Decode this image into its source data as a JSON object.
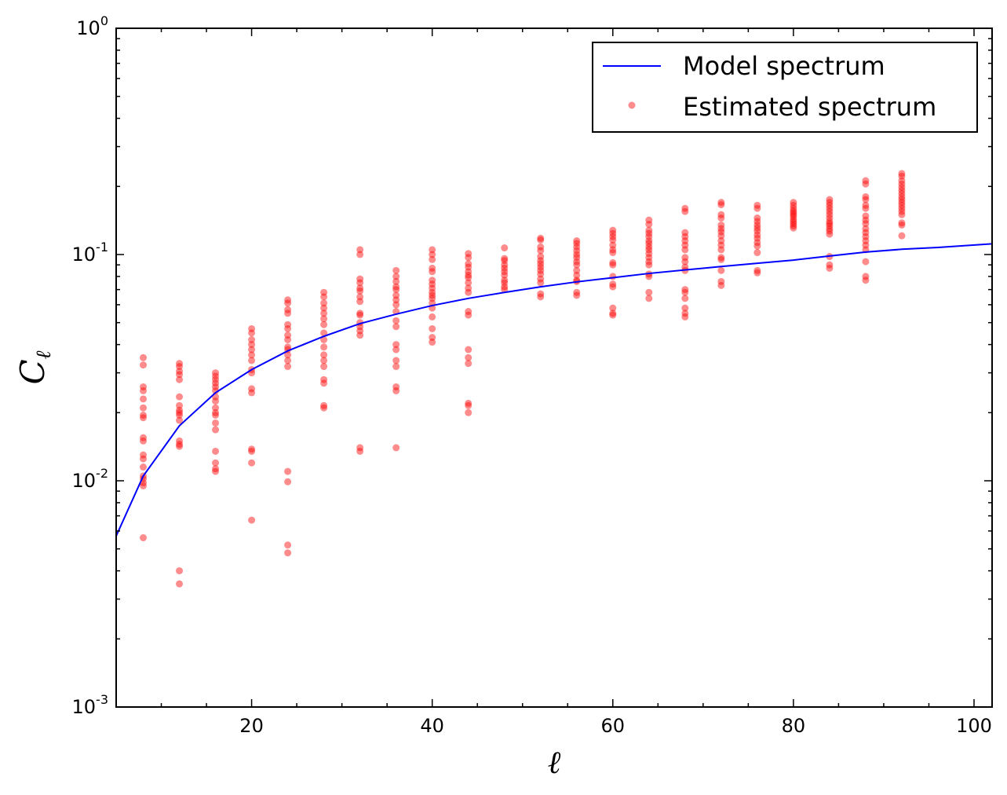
{
  "chart_data": {
    "type": "scatter",
    "title": "",
    "xlabel": "ℓ",
    "ylabel_main": "C",
    "ylabel_sub": "ℓ",
    "xlim": [
      5,
      102
    ],
    "ylim": [
      0.001,
      1
    ],
    "y_scale": "log",
    "grid": false,
    "legend_position": "top-right",
    "x_ticks": [
      {
        "value": 20,
        "label": "20"
      },
      {
        "value": 40,
        "label": "40"
      },
      {
        "value": 60,
        "label": "60"
      },
      {
        "value": 80,
        "label": "80"
      },
      {
        "value": 100,
        "label": "100"
      }
    ],
    "y_ticks": [
      {
        "value": 0.001,
        "base": "10",
        "exp": "-3"
      },
      {
        "value": 0.01,
        "base": "10",
        "exp": "-2"
      },
      {
        "value": 0.1,
        "base": "10",
        "exp": "-1"
      },
      {
        "value": 1,
        "base": "10",
        "exp": "0"
      }
    ],
    "model": {
      "name": "Model spectrum",
      "color": "#0000ff",
      "x": [
        5,
        8,
        12,
        16,
        20,
        24,
        28,
        32,
        36,
        40,
        44,
        48,
        52,
        56,
        60,
        64,
        68,
        72,
        76,
        80,
        84,
        88,
        92,
        96,
        102
      ],
      "y": [
        0.0057,
        0.0105,
        0.0175,
        0.0245,
        0.031,
        0.0375,
        0.0435,
        0.0495,
        0.0545,
        0.0595,
        0.064,
        0.068,
        0.072,
        0.0757,
        0.079,
        0.0825,
        0.0855,
        0.0885,
        0.0915,
        0.0945,
        0.0985,
        0.1025,
        0.1055,
        0.1075,
        0.1115
      ]
    },
    "estimated": {
      "name": "Estimated spectrum",
      "color": "#ff0000",
      "groups": [
        {
          "x": 8,
          "y": [
            0.035,
            0.0325,
            0.026,
            0.025,
            0.023,
            0.021,
            0.0195,
            0.019,
            0.0155,
            0.015,
            0.013,
            0.0125,
            0.0115,
            0.0105,
            0.0102,
            0.0098,
            0.0095,
            0.0056
          ]
        },
        {
          "x": 12,
          "y": [
            0.033,
            0.032,
            0.0305,
            0.0295,
            0.028,
            0.0235,
            0.0215,
            0.0205,
            0.02,
            0.0195,
            0.0185,
            0.015,
            0.0145,
            0.0142,
            0.004,
            0.0035
          ]
        },
        {
          "x": 16,
          "y": [
            0.03,
            0.029,
            0.028,
            0.027,
            0.026,
            0.025,
            0.0235,
            0.0225,
            0.021,
            0.02,
            0.0195,
            0.018,
            0.0168,
            0.0135,
            0.012,
            0.0113,
            0.011
          ]
        },
        {
          "x": 20,
          "y": [
            0.047,
            0.045,
            0.042,
            0.04,
            0.038,
            0.036,
            0.034,
            0.031,
            0.03,
            0.0255,
            0.0245,
            0.0138,
            0.0135,
            0.012,
            0.0067
          ]
        },
        {
          "x": 24,
          "y": [
            0.063,
            0.061,
            0.057,
            0.055,
            0.049,
            0.047,
            0.044,
            0.042,
            0.039,
            0.038,
            0.036,
            0.034,
            0.032,
            0.011,
            0.0099,
            0.0052,
            0.0048
          ]
        },
        {
          "x": 28,
          "y": [
            0.068,
            0.065,
            0.061,
            0.058,
            0.055,
            0.052,
            0.049,
            0.045,
            0.042,
            0.039,
            0.036,
            0.034,
            0.032,
            0.028,
            0.027,
            0.0215,
            0.021
          ]
        },
        {
          "x": 32,
          "y": [
            0.105,
            0.1,
            0.078,
            0.075,
            0.071,
            0.069,
            0.065,
            0.062,
            0.055,
            0.054,
            0.05,
            0.048,
            0.046,
            0.044,
            0.014,
            0.0135
          ]
        },
        {
          "x": 36,
          "y": [
            0.085,
            0.08,
            0.076,
            0.072,
            0.07,
            0.066,
            0.063,
            0.06,
            0.056,
            0.051,
            0.048,
            0.04,
            0.038,
            0.034,
            0.032,
            0.026,
            0.025,
            0.014
          ]
        },
        {
          "x": 40,
          "y": [
            0.105,
            0.1,
            0.095,
            0.087,
            0.084,
            0.077,
            0.074,
            0.071,
            0.068,
            0.066,
            0.064,
            0.061,
            0.058,
            0.053,
            0.047,
            0.043,
            0.041
          ]
        },
        {
          "x": 44,
          "y": [
            0.101,
            0.097,
            0.091,
            0.088,
            0.084,
            0.081,
            0.079,
            0.075,
            0.071,
            0.068,
            0.056,
            0.054,
            0.038,
            0.035,
            0.033,
            0.022,
            0.0215,
            0.02
          ]
        },
        {
          "x": 48,
          "y": [
            0.107,
            0.096,
            0.094,
            0.09,
            0.087,
            0.084,
            0.081,
            0.077,
            0.075,
            0.072,
            0.07
          ]
        },
        {
          "x": 52,
          "y": [
            0.118,
            0.116,
            0.108,
            0.104,
            0.098,
            0.094,
            0.091,
            0.088,
            0.085,
            0.082,
            0.078,
            0.075,
            0.067,
            0.065
          ]
        },
        {
          "x": 56,
          "y": [
            0.115,
            0.112,
            0.108,
            0.104,
            0.1,
            0.097,
            0.093,
            0.09,
            0.085,
            0.081,
            0.077,
            0.076,
            0.068,
            0.066
          ]
        },
        {
          "x": 60,
          "y": [
            0.128,
            0.124,
            0.12,
            0.116,
            0.11,
            0.105,
            0.102,
            0.092,
            0.09,
            0.08,
            0.074,
            0.072,
            0.058,
            0.055,
            0.054
          ]
        },
        {
          "x": 64,
          "y": [
            0.142,
            0.136,
            0.128,
            0.124,
            0.12,
            0.115,
            0.112,
            0.108,
            0.105,
            0.101,
            0.097,
            0.093,
            0.09,
            0.082,
            0.08,
            0.068,
            0.064
          ]
        },
        {
          "x": 68,
          "y": [
            0.16,
            0.155,
            0.125,
            0.12,
            0.115,
            0.11,
            0.105,
            0.097,
            0.093,
            0.088,
            0.085,
            0.07,
            0.068,
            0.064,
            0.058,
            0.055,
            0.053
          ]
        },
        {
          "x": 72,
          "y": [
            0.17,
            0.166,
            0.15,
            0.145,
            0.135,
            0.13,
            0.126,
            0.121,
            0.115,
            0.11,
            0.105,
            0.097,
            0.095,
            0.085,
            0.076,
            0.073
          ]
        },
        {
          "x": 76,
          "y": [
            0.165,
            0.16,
            0.145,
            0.14,
            0.135,
            0.131,
            0.127,
            0.122,
            0.118,
            0.113,
            0.109,
            0.102,
            0.085,
            0.083
          ]
        },
        {
          "x": 80,
          "y": [
            0.17,
            0.165,
            0.16,
            0.156,
            0.153,
            0.15,
            0.147,
            0.143,
            0.14,
            0.137,
            0.134,
            0.131
          ]
        },
        {
          "x": 84,
          "y": [
            0.175,
            0.17,
            0.165,
            0.16,
            0.155,
            0.15,
            0.145,
            0.14,
            0.137,
            0.134,
            0.13,
            0.127,
            0.123,
            0.098,
            0.09,
            0.087
          ]
        },
        {
          "x": 88,
          "y": [
            0.212,
            0.205,
            0.18,
            0.175,
            0.165,
            0.16,
            0.148,
            0.142,
            0.137,
            0.13,
            0.125,
            0.12,
            0.115,
            0.11,
            0.105,
            0.093,
            0.08,
            0.077
          ]
        },
        {
          "x": 92,
          "y": [
            0.228,
            0.222,
            0.212,
            0.205,
            0.198,
            0.192,
            0.186,
            0.18,
            0.175,
            0.17,
            0.165,
            0.16,
            0.155,
            0.15,
            0.138,
            0.135,
            0.121
          ]
        }
      ]
    }
  }
}
